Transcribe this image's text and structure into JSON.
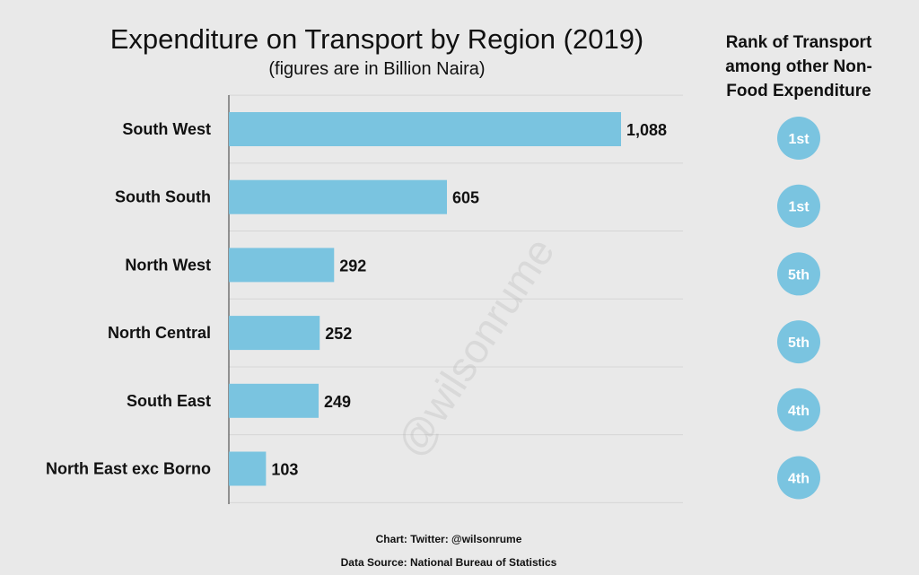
{
  "chart_data": {
    "type": "bar",
    "orientation": "horizontal",
    "title": "Expenditure on Transport by Region (2019)",
    "subtitle": "(figures are in Billion Naira)",
    "categories": [
      "South West",
      "South South",
      "North West",
      "North Central",
      "South East",
      "North East exc Borno"
    ],
    "values": [
      1088,
      605,
      292,
      252,
      249,
      103
    ],
    "value_labels": [
      "1,088",
      "605",
      "292",
      "252",
      "249",
      "103"
    ],
    "xlim": [
      0,
      1210
    ],
    "grid": true,
    "bar_color": "#7ac4e0",
    "rank_header": "Rank of Transport among other Non-Food Expenditure",
    "ranks": [
      "1st",
      "1st",
      "5th",
      "5th",
      "4th",
      "4th"
    ],
    "rank_color": "#7ac4e0"
  },
  "watermark": "@wilsonrume",
  "credits": {
    "chart": "Chart: Twitter: @wilsonrume",
    "source": "Data Source: National Bureau of Statistics"
  }
}
